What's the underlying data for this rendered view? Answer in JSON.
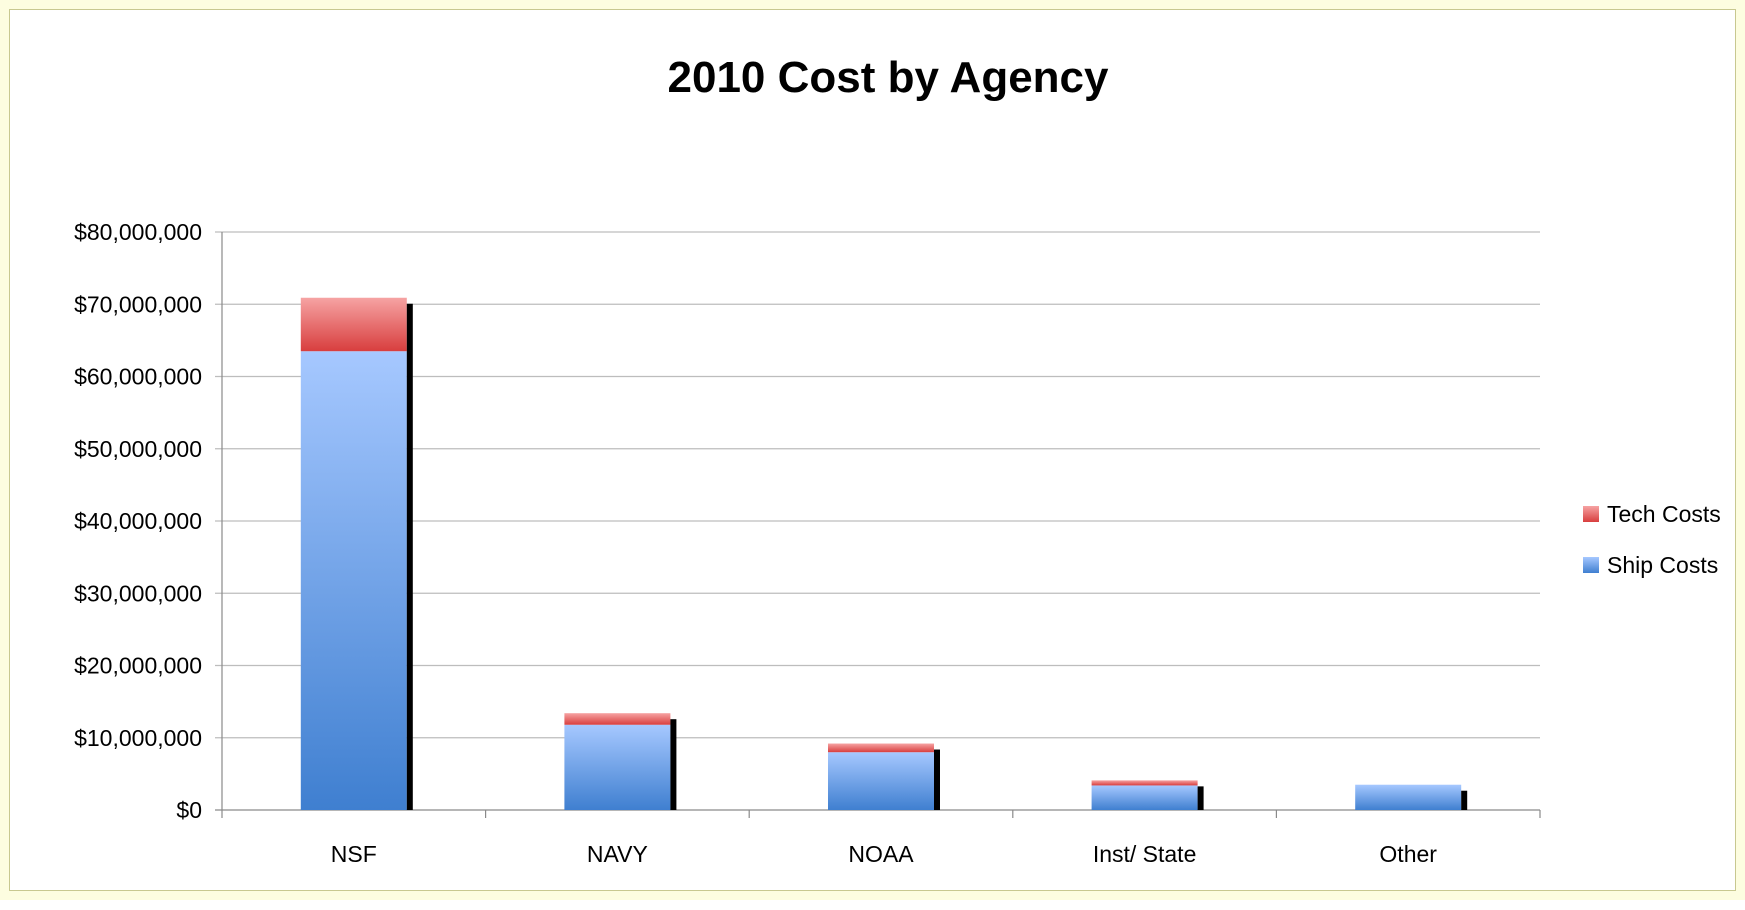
{
  "chart_data": {
    "type": "bar",
    "stacked": true,
    "title": "2010 Cost by Agency",
    "xlabel": "",
    "ylabel": "",
    "categories": [
      "NSF",
      "NAVY",
      "NOAA",
      "Inst/ State",
      "Other"
    ],
    "series": [
      {
        "name": "Ship Costs",
        "values": [
          63500000,
          11800000,
          8000000,
          3400000,
          3500000
        ],
        "color": "#6f9be6"
      },
      {
        "name": "Tech Costs",
        "values": [
          7400000,
          1600000,
          1200000,
          700000,
          0
        ],
        "color": "#e86a6a"
      }
    ],
    "ylim": [
      0,
      80000000
    ],
    "yticks": [
      0,
      10000000,
      20000000,
      30000000,
      40000000,
      50000000,
      60000000,
      70000000,
      80000000
    ],
    "ytick_labels": [
      "$0",
      "$10,000,000",
      "$20,000,000",
      "$30,000,000",
      "$40,000,000",
      "$50,000,000",
      "$60,000,000",
      "$70,000,000",
      "$80,000,000"
    ],
    "legend_order": [
      "Tech Costs",
      "Ship Costs"
    ],
    "legend_position": "right",
    "grid": true
  }
}
